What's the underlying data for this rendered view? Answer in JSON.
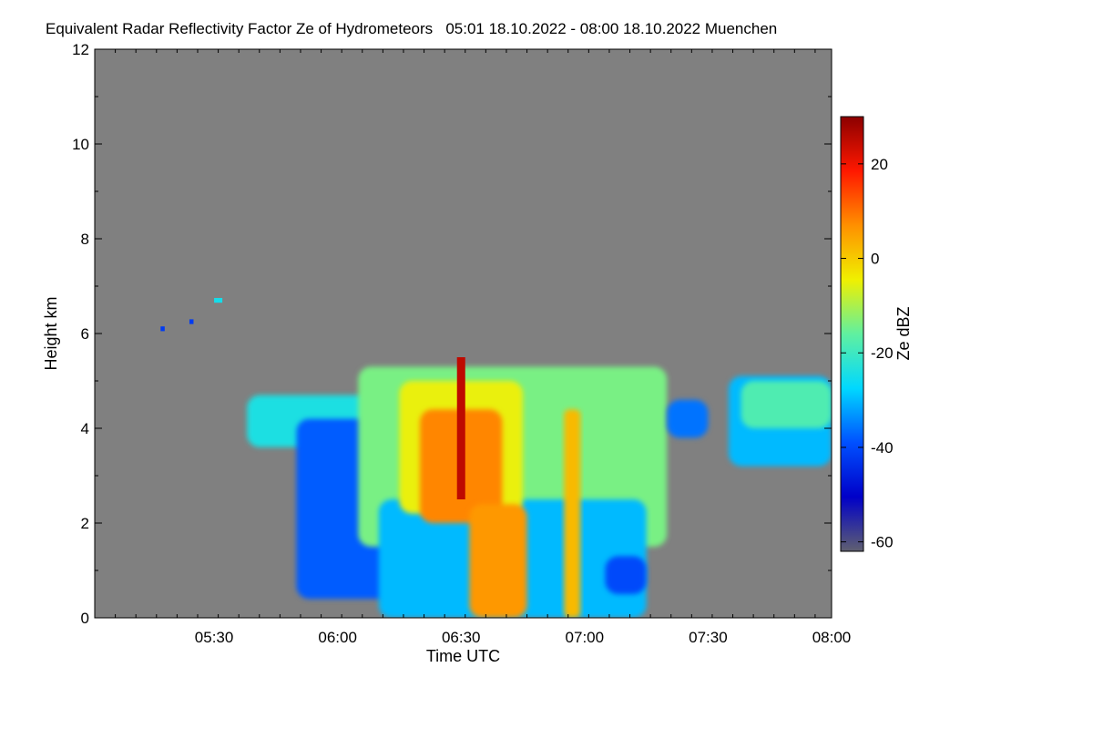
{
  "chart_data": {
    "type": "heatmap",
    "title": "Equivalent Radar Reflectivity Factor Ze of Hydrometeors   05:01 18.10.2022 - 08:00 18.10.2022 Muenchen",
    "xlabel": "Time UTC",
    "ylabel": "Height km",
    "colorbar_label": "Ze dBZ",
    "x_range": [
      "05:01",
      "08:00"
    ],
    "x_ticks": [
      "05:30",
      "06:00",
      "06:30",
      "07:00",
      "07:30",
      "08:00"
    ],
    "y_range": [
      0,
      12
    ],
    "y_ticks": [
      0,
      2,
      4,
      6,
      8,
      10,
      12
    ],
    "colorbar_range": [
      -62,
      30
    ],
    "colorbar_ticks": [
      -60,
      -40,
      -20,
      0,
      20
    ],
    "background_color": "#808080",
    "colormap": [
      "#606070",
      "#0000c8",
      "#0050ff",
      "#00d8ff",
      "#60f0a0",
      "#f0f000",
      "#ff9000",
      "#ff1800",
      "#8c0000"
    ],
    "echo_regions": [
      {
        "time_start": "05:17",
        "time_end": "05:18",
        "height_min": 6.05,
        "height_max": 6.15,
        "ze_dbz": -42
      },
      {
        "time_start": "05:24",
        "time_end": "05:25",
        "height_min": 6.2,
        "height_max": 6.3,
        "ze_dbz": -42
      },
      {
        "time_start": "05:30",
        "time_end": "05:32",
        "height_min": 6.65,
        "height_max": 6.75,
        "ze_dbz": -25
      },
      {
        "time_start": "05:38",
        "time_end": "06:15",
        "height_min": 3.6,
        "height_max": 4.7,
        "ze_dbz": -24
      },
      {
        "time_start": "05:50",
        "time_end": "06:25",
        "height_min": 0.4,
        "height_max": 4.2,
        "ze_dbz": -38
      },
      {
        "time_start": "06:05",
        "time_end": "07:20",
        "height_min": 1.5,
        "height_max": 5.3,
        "ze_dbz": -14
      },
      {
        "time_start": "06:10",
        "time_end": "07:15",
        "height_min": 0.0,
        "height_max": 2.5,
        "ze_dbz": -30
      },
      {
        "time_start": "06:15",
        "time_end": "06:45",
        "height_min": 2.2,
        "height_max": 5.0,
        "ze_dbz": -5
      },
      {
        "time_start": "06:20",
        "time_end": "06:40",
        "height_min": 2.0,
        "height_max": 4.4,
        "ze_dbz": 8
      },
      {
        "time_start": "06:29",
        "time_end": "06:31",
        "height_min": 2.5,
        "height_max": 5.5,
        "ze_dbz": 25
      },
      {
        "time_start": "06:32",
        "time_end": "06:46",
        "height_min": 0.0,
        "height_max": 2.4,
        "ze_dbz": 6
      },
      {
        "time_start": "06:55",
        "time_end": "06:59",
        "height_min": 0.0,
        "height_max": 4.4,
        "ze_dbz": 2
      },
      {
        "time_start": "07:05",
        "time_end": "07:15",
        "height_min": 0.5,
        "height_max": 1.3,
        "ze_dbz": -40
      },
      {
        "time_start": "07:20",
        "time_end": "07:30",
        "height_min": 3.8,
        "height_max": 4.6,
        "ze_dbz": -36
      },
      {
        "time_start": "07:35",
        "time_end": "08:00",
        "height_min": 3.2,
        "height_max": 5.1,
        "ze_dbz": -30
      },
      {
        "time_start": "07:38",
        "time_end": "08:00",
        "height_min": 4.0,
        "height_max": 5.0,
        "ze_dbz": -18
      }
    ]
  }
}
